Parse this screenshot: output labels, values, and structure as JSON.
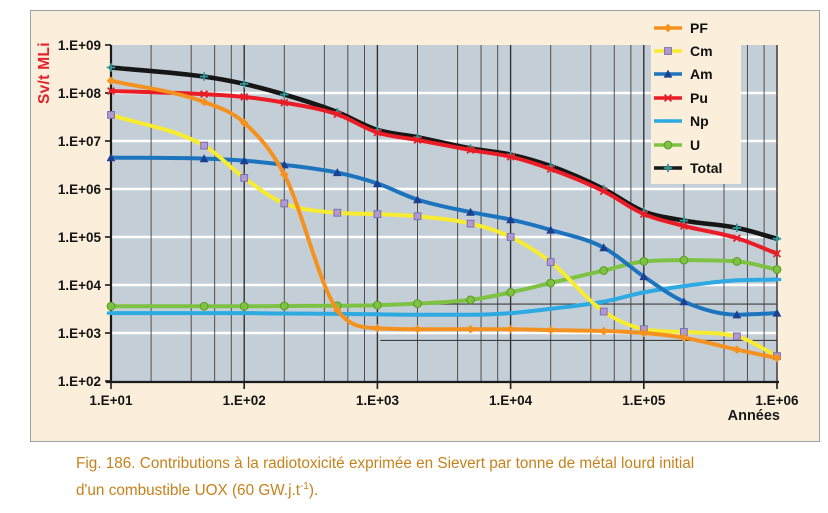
{
  "panel": {
    "background": "#FBEFDC",
    "border_color": "#97A2AB"
  },
  "chart_data": {
    "type": "line",
    "x_scale": "log",
    "y_scale": "log",
    "plot_background": "#C4CED7",
    "gridline_major_color": "#FFFFFF",
    "gridline_minor_color": "#4E4E4E",
    "axis_color": "#1A1A1A",
    "x_axis": {
      "title": "Années",
      "ticks": [
        "1.E+01",
        "1.E+02",
        "1.E+03",
        "1.E+04",
        "1.E+05",
        "1.E+06"
      ],
      "tick_values": [
        10,
        100,
        1000,
        10000,
        100000,
        1000000
      ],
      "range": [
        10,
        1000000
      ]
    },
    "y_axis": {
      "title": "Sv/t MLi",
      "title_color": "#E4202C",
      "ticks": [
        "1.E+09",
        "1.E+08",
        "1.E+07",
        "1.E+06",
        "1.E+05",
        "1.E+04",
        "1.E+03",
        "1.E+02"
      ],
      "tick_values": [
        1000000000.0,
        100000000.0,
        10000000.0,
        1000000.0,
        100000.0,
        10000.0,
        1000.0,
        100.0
      ],
      "range": [
        100,
        1000000000
      ]
    },
    "x_years": [
      10,
      50,
      100,
      200,
      500,
      1000,
      2000,
      5000,
      10000,
      20000,
      50000,
      100000,
      200000,
      500000,
      1000000
    ],
    "series": [
      {
        "name": "PF",
        "color": "#F5921F",
        "marker": "diamond",
        "marker_color": "#F5921F",
        "values": [
          180000000.0,
          65000000.0,
          24000000.0,
          2000000.0,
          3000.0,
          1250.0,
          1200.0,
          1200.0,
          1200.0,
          1150.0,
          1100.0,
          1000.0,
          800.0,
          450.0,
          300.0
        ]
      },
      {
        "name": "Cm",
        "color": "#F8EC30",
        "marker": "square",
        "marker_color": "#AE9BD3",
        "values": [
          35000000.0,
          8000000.0,
          1700000.0,
          500000.0,
          320000.0,
          300000.0,
          270000.0,
          190000.0,
          100000.0,
          30000.0,
          2800.0,
          1200.0,
          1050.0,
          850.0,
          330.0
        ]
      },
      {
        "name": "Am",
        "color": "#1C74BF",
        "marker": "triangle",
        "marker_color": "#1E3F8F",
        "values": [
          4500000.0,
          4300000.0,
          3900000.0,
          3200000.0,
          2200000.0,
          1300000.0,
          600000.0,
          330000.0,
          230000.0,
          140000.0,
          60000.0,
          15000.0,
          4500.0,
          2400.0,
          2600.0
        ]
      },
      {
        "name": "Pu",
        "color": "#EA1C25",
        "marker": "x",
        "marker_color": "#EA1C25",
        "values": [
          110000000.0,
          95000000.0,
          83000000.0,
          63000000.0,
          36000000.0,
          15000000.0,
          10500000.0,
          6500000.0,
          4700000.0,
          2600000.0,
          900000.0,
          300000.0,
          170000.0,
          95000.0,
          45000.0
        ]
      },
      {
        "name": "Np",
        "color": "#2CAAE1",
        "marker": "dash",
        "marker_color": "#2CAAE1",
        "values": [
          2600.0,
          2600.0,
          2600.0,
          2550.0,
          2500.0,
          2450.0,
          2400.0,
          2400.0,
          2600.0,
          3200.0,
          4500.0,
          7000.0,
          9500.0,
          12500.0,
          13000.0
        ]
      },
      {
        "name": "U",
        "color": "#7DC242",
        "marker": "circle",
        "marker_color": "#7DC242",
        "values": [
          3600.0,
          3600.0,
          3600.0,
          3650.0,
          3700.0,
          3800.0,
          4100.0,
          4900.0,
          7000.0,
          11000.0,
          20000.0,
          31000.0,
          33000.0,
          31000.0,
          21000.0
        ]
      },
      {
        "name": "Total",
        "color": "#161616",
        "marker": "plus",
        "marker_color": "#2E9B9B",
        "values": [
          340000000.0,
          220000000.0,
          155000000.0,
          93000000.0,
          40000000.0,
          17000000.0,
          12000000.0,
          7000000.0,
          5200000.0,
          3000000.0,
          1000000.0,
          340000.0,
          220000.0,
          155000.0,
          92000.0
        ]
      }
    ],
    "annotation_lines": [
      {
        "y": 4000,
        "x_start": 1050,
        "x_end": 1000000
      },
      {
        "y": 700,
        "x_start": 1050,
        "x_end": 1000000
      }
    ]
  },
  "caption": {
    "color": "#C5821C",
    "line1": "Fig. 186. Contributions à la radiotoxicité exprimée en Sievert par tonne de métal lourd initial",
    "line2_pre": "d'un combustible UOX (60 GW.j.t",
    "line2_sup": "-1",
    "line2_post": ")."
  }
}
